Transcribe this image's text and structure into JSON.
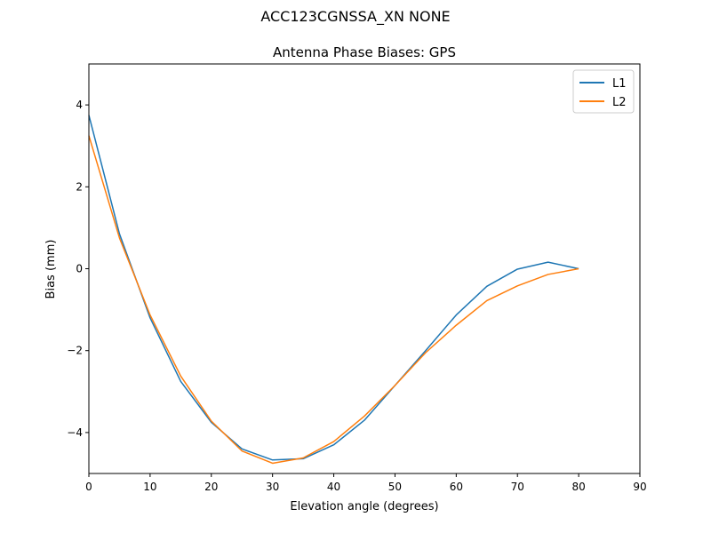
{
  "figure": {
    "suptitle": "ACC123CGNSSA_XN NONE"
  },
  "chart_data": {
    "type": "line",
    "title": "Antenna Phase Biases: GPS",
    "xlabel": "Elevation angle (degrees)",
    "ylabel": "Bias (mm)",
    "xlim": [
      0,
      90
    ],
    "ylim": [
      -5,
      5
    ],
    "xticks": [
      0,
      10,
      20,
      30,
      40,
      50,
      60,
      70,
      80,
      90
    ],
    "xtick_labels": [
      "0",
      "10",
      "20",
      "30",
      "40",
      "50",
      "60",
      "70",
      "80",
      "90"
    ],
    "yticks": [
      -4,
      -2,
      0,
      2,
      4
    ],
    "ytick_labels": [
      "−4",
      "−2",
      "0",
      "2",
      "4"
    ],
    "grid": false,
    "legend_position": "top-right",
    "x": [
      0,
      5,
      10,
      15,
      20,
      25,
      30,
      35,
      40,
      45,
      50,
      55,
      60,
      65,
      70,
      75,
      80
    ],
    "series": [
      {
        "name": "L1",
        "color": "#1f77b4",
        "values": [
          3.75,
          0.85,
          -1.2,
          -2.75,
          -3.75,
          -4.4,
          -4.67,
          -4.64,
          -4.3,
          -3.7,
          -2.85,
          -2.0,
          -1.13,
          -0.43,
          -0.01,
          0.16,
          0.0
        ]
      },
      {
        "name": "L2",
        "color": "#ff7f0e",
        "values": [
          3.25,
          0.75,
          -1.13,
          -2.62,
          -3.72,
          -4.45,
          -4.75,
          -4.62,
          -4.22,
          -3.6,
          -2.85,
          -2.05,
          -1.38,
          -0.78,
          -0.42,
          -0.14,
          0.0
        ]
      }
    ]
  }
}
